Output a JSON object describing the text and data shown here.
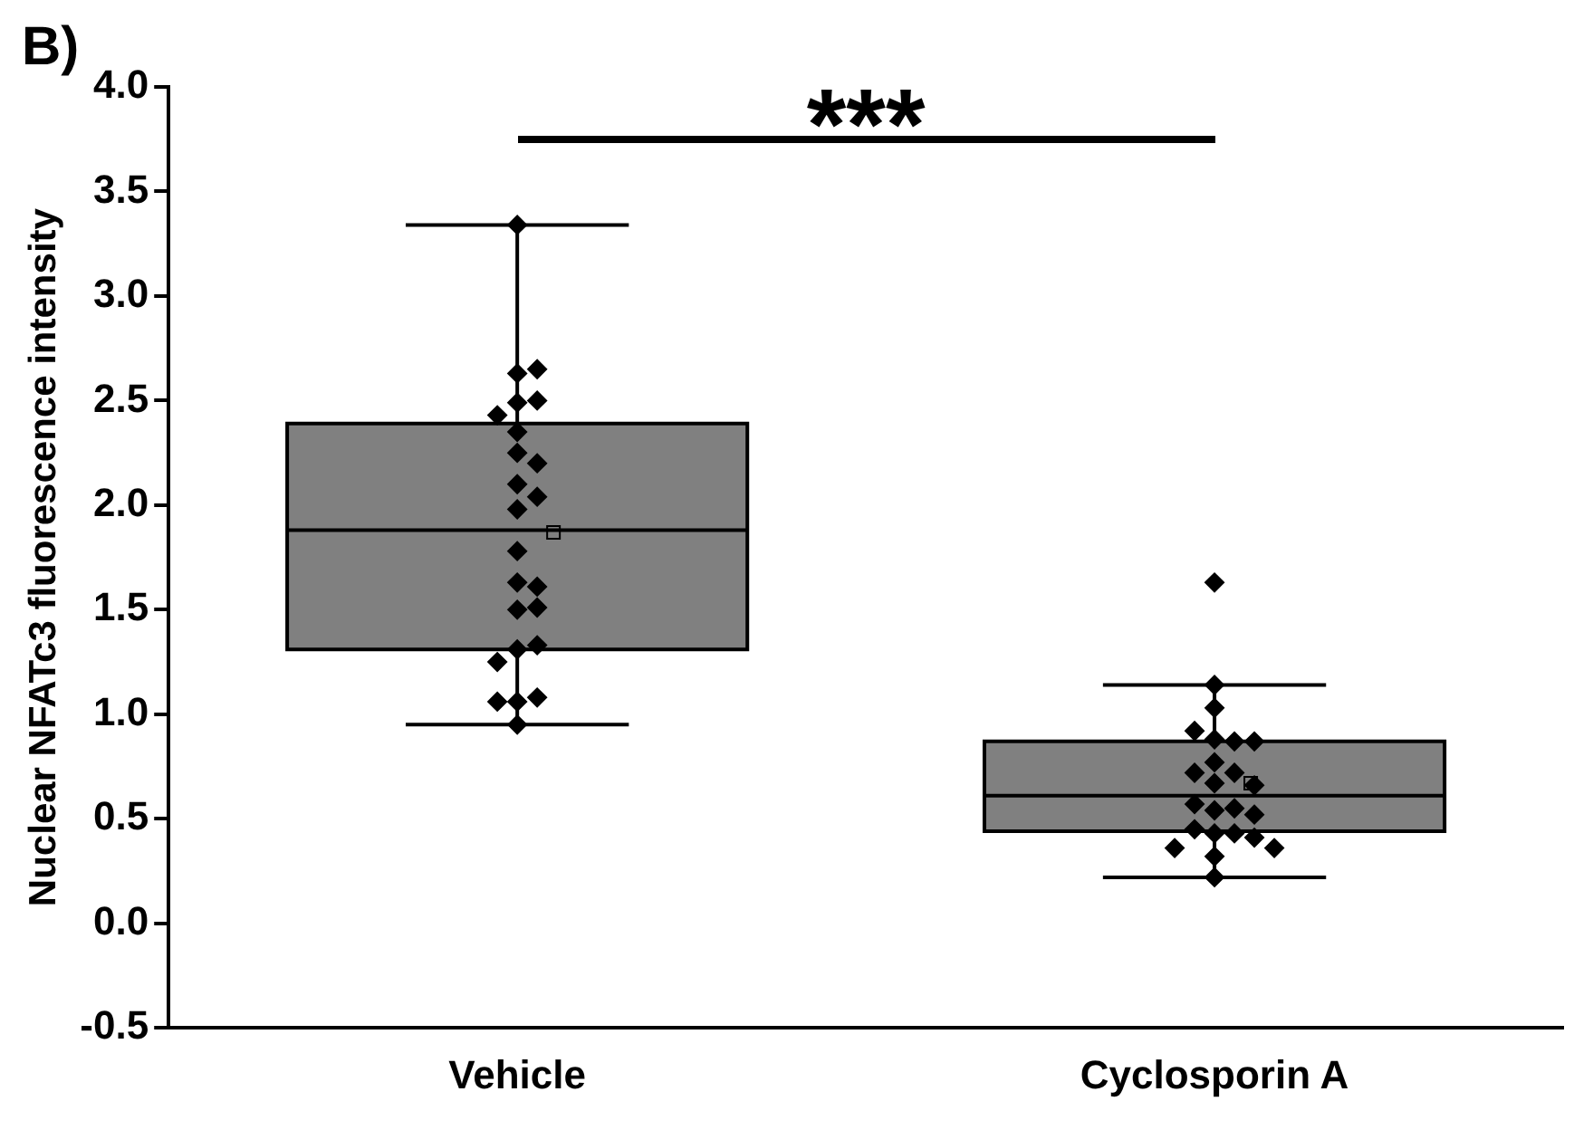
{
  "chart_data": {
    "type": "box",
    "ylabel": "Nuclear NFATc3 fluorescence intensity",
    "categories": [
      "Vehicle",
      "Cyclosporin A"
    ],
    "color": "#808080",
    "ylim": [
      -0.5,
      4.0
    ],
    "yticks": [
      {
        "value": -0.5,
        "label": "-0.5"
      },
      {
        "value": 0,
        "label": "0.0"
      },
      {
        "value": 0.5,
        "label": "0.5"
      },
      {
        "value": 1,
        "label": "1.0"
      },
      {
        "value": 1.5,
        "label": "1.5"
      },
      {
        "value": 2,
        "label": "2.0"
      },
      {
        "value": 2.5,
        "label": "2.5"
      },
      {
        "value": 3,
        "label": "3.0"
      },
      {
        "value": 3.5,
        "label": "3.5"
      },
      {
        "value": 4,
        "label": "4.0"
      }
    ],
    "boxes": [
      {
        "low": 0.95,
        "q1": 1.31,
        "median": 1.88,
        "q3": 2.39,
        "high": 3.34,
        "mean": 1.87
      },
      {
        "low": 0.22,
        "q1": 0.44,
        "median": 0.61,
        "q3": 0.87,
        "high": 1.14,
        "mean": 0.67
      }
    ],
    "series": [
      {
        "type": "scatter",
        "color": "#000000",
        "x": [
          "Vehicle",
          "Vehicle",
          "Vehicle",
          "Vehicle",
          "Vehicle",
          "Vehicle",
          "Vehicle",
          "Vehicle",
          "Vehicle",
          "Vehicle",
          "Vehicle",
          "Vehicle",
          "Vehicle",
          "Vehicle",
          "Vehicle",
          "Vehicle",
          "Vehicle",
          "Vehicle",
          "Vehicle",
          "Vehicle",
          "Vehicle",
          "Vehicle",
          "Vehicle",
          "Vehicle",
          "Cyclosporin A",
          "Cyclosporin A",
          "Cyclosporin A",
          "Cyclosporin A",
          "Cyclosporin A",
          "Cyclosporin A",
          "Cyclosporin A",
          "Cyclosporin A",
          "Cyclosporin A",
          "Cyclosporin A",
          "Cyclosporin A",
          "Cyclosporin A",
          "Cyclosporin A",
          "Cyclosporin A",
          "Cyclosporin A",
          "Cyclosporin A",
          "Cyclosporin A",
          "Cyclosporin A",
          "Cyclosporin A",
          "Cyclosporin A",
          "Cyclosporin A",
          "Cyclosporin A",
          "Cyclosporin A",
          "Cyclosporin A"
        ],
        "values": [
          3.34,
          2.63,
          2.65,
          2.49,
          2.5,
          2.43,
          2.35,
          2.25,
          2.2,
          2.1,
          2.04,
          1.98,
          1.78,
          1.63,
          1.61,
          1.5,
          1.51,
          1.31,
          1.33,
          1.25,
          1.06,
          1.08,
          1.06,
          0.95,
          1.63,
          1.14,
          1.03,
          0.88,
          0.87,
          0.92,
          0.87,
          0.77,
          0.72,
          0.72,
          0.67,
          0.66,
          0.54,
          0.55,
          0.57,
          0.52,
          0.43,
          0.43,
          0.45,
          0.41,
          0.36,
          0.32,
          0.36,
          0.22
        ]
      }
    ],
    "marker": "diamond",
    "annotations": [
      "B)",
      "***"
    ],
    "grid": false,
    "legend": false
  }
}
